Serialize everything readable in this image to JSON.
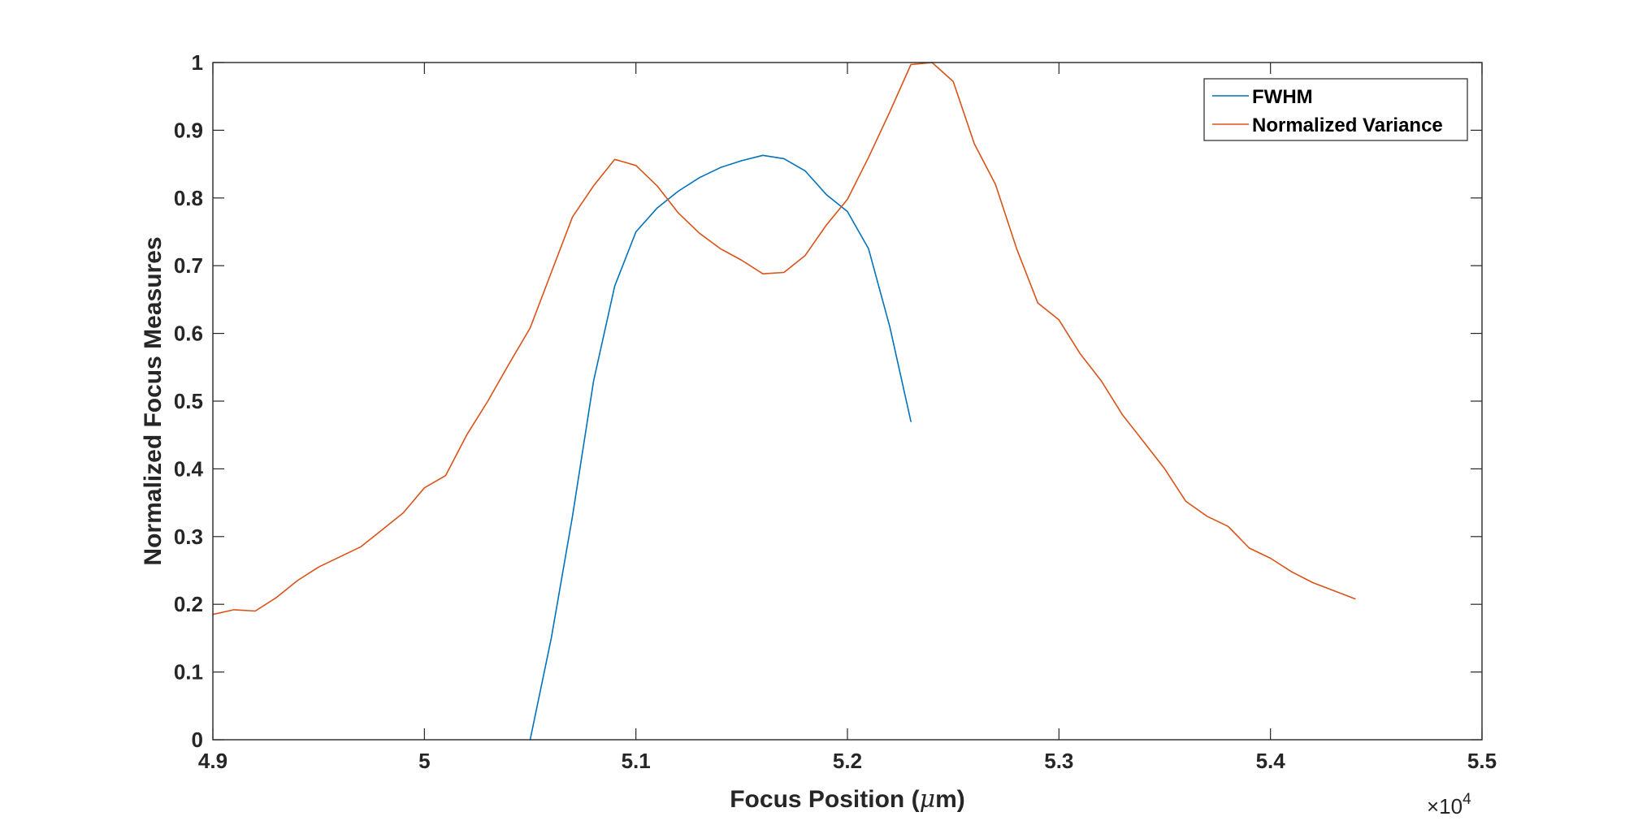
{
  "chart_data": {
    "type": "line",
    "xlabel": "Focus Position (μm)",
    "ylabel": "Normalized Focus Measures",
    "x_multiplier": {
      "prefix": "×10",
      "exponent": "4"
    },
    "xlim": [
      49000,
      55000
    ],
    "ylim": [
      0,
      1
    ],
    "x_ticks": [
      49000,
      50000,
      51000,
      52000,
      53000,
      54000,
      55000
    ],
    "x_tick_labels": [
      "4.9",
      "5",
      "5.1",
      "5.2",
      "5.3",
      "5.4",
      "5.5"
    ],
    "y_ticks": [
      0,
      0.1,
      0.2,
      0.3,
      0.4,
      0.5,
      0.6,
      0.7,
      0.8,
      0.9,
      1
    ],
    "y_tick_labels": [
      "0",
      "0.1",
      "0.2",
      "0.3",
      "0.4",
      "0.5",
      "0.6",
      "0.7",
      "0.8",
      "0.9",
      "1"
    ],
    "grid": false,
    "legend_position": "top-right",
    "series": [
      {
        "name": "FWHM",
        "color": "#0072BD",
        "x": [
          50500,
          50600,
          50700,
          50800,
          50900,
          51000,
          51100,
          51200,
          51300,
          51400,
          51500,
          51600,
          51700,
          51800,
          51900,
          52000,
          52100,
          52200,
          52300
        ],
        "y": [
          0.0,
          0.15,
          0.33,
          0.53,
          0.67,
          0.75,
          0.785,
          0.81,
          0.83,
          0.845,
          0.855,
          0.863,
          0.858,
          0.84,
          0.805,
          0.78,
          0.725,
          0.61,
          0.47
        ]
      },
      {
        "name": "Normalized Variance",
        "color": "#D95319",
        "x": [
          49000,
          49100,
          49200,
          49300,
          49400,
          49500,
          49600,
          49700,
          49800,
          49900,
          50000,
          50100,
          50200,
          50300,
          50400,
          50500,
          50600,
          50700,
          50800,
          50900,
          51000,
          51100,
          51200,
          51300,
          51400,
          51500,
          51600,
          51700,
          51800,
          51900,
          52000,
          52100,
          52200,
          52300,
          52400,
          52500,
          52600,
          52700,
          52800,
          52900,
          53000,
          53100,
          53200,
          53300,
          53400,
          53500,
          53600,
          53700,
          53800,
          53900,
          54000,
          54100,
          54200,
          54300,
          54400
        ],
        "y": [
          0.185,
          0.192,
          0.19,
          0.21,
          0.235,
          0.255,
          0.27,
          0.285,
          0.31,
          0.335,
          0.372,
          0.39,
          0.45,
          0.5,
          0.555,
          0.608,
          0.69,
          0.772,
          0.818,
          0.857,
          0.848,
          0.818,
          0.778,
          0.748,
          0.725,
          0.708,
          0.688,
          0.69,
          0.715,
          0.76,
          0.798,
          0.86,
          0.927,
          0.997,
          1.0,
          0.972,
          0.88,
          0.82,
          0.725,
          0.645,
          0.62,
          0.57,
          0.53,
          0.48,
          0.44,
          0.4,
          0.352,
          0.33,
          0.315,
          0.283,
          0.268,
          0.248,
          0.232,
          0.22,
          0.208
        ]
      }
    ]
  }
}
